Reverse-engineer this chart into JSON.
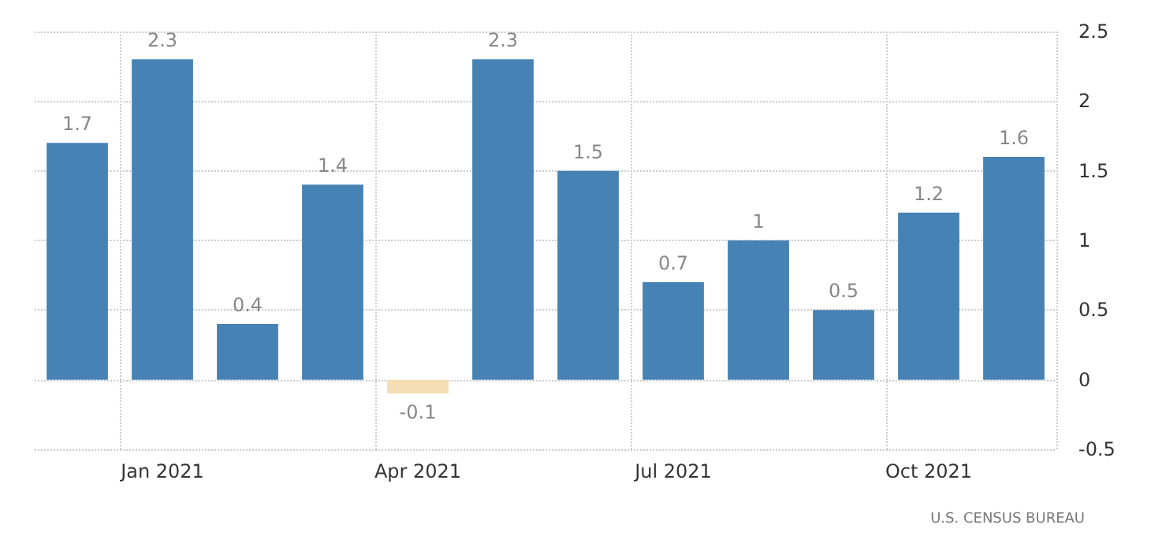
{
  "chart_data": {
    "type": "bar",
    "categories": [
      null,
      "Jan 2021",
      null,
      null,
      "Apr 2021",
      null,
      null,
      "Jul 2021",
      null,
      null,
      "Oct 2021",
      null
    ],
    "values": [
      1.7,
      2.3,
      0.4,
      1.4,
      -0.1,
      2.3,
      1.5,
      0.7,
      1,
      0.5,
      1.2,
      1.6
    ],
    "colors": [
      "#4682b4",
      "#4682b4",
      "#4682b4",
      "#4682b4",
      "#f5deb3",
      "#4682b4",
      "#4682b4",
      "#4682b4",
      "#4682b4",
      "#4682b4",
      "#4682b4",
      "#4682b4"
    ],
    "ylim": [
      -0.5,
      2.5
    ],
    "yticks": [
      -0.5,
      0,
      0.5,
      1,
      1.5,
      2,
      2.5
    ],
    "grid": true,
    "data_labels": true,
    "annotations": [
      "U.S. CENSUS BUREAU"
    ]
  }
}
